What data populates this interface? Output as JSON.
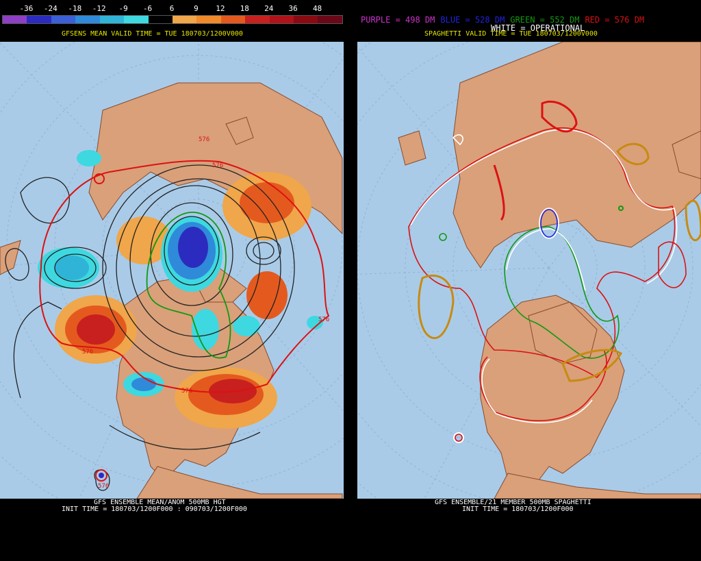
{
  "left": {
    "colorbar_labels": [
      "-36",
      "-24",
      "-18",
      "-12",
      "-9",
      "-6",
      "6",
      "9",
      "12",
      "18",
      "24",
      "36",
      "48"
    ],
    "colorbar_colors": [
      "#8e3fc4",
      "#2c2bbf",
      "#3a5fd6",
      "#2f8ad9",
      "#2fb4d8",
      "#3ed8e0",
      "#000000",
      "#f0a64a",
      "#f08a2a",
      "#e45a1e",
      "#c8201e",
      "#b0121a",
      "#8a0a12",
      "#6a0818"
    ],
    "valid_time": "GFSENS MEAN VALID TIME = TUE 180703/1200V000",
    "title_line1": "GFS ENSEMBLE MEAN/ANOM 500MB HGT",
    "title_line2": "INIT TIME = 180703/1200F000 : 090703/1200F000",
    "contour_labels": [
      "576",
      "576",
      "576",
      "576",
      "576",
      "576"
    ]
  },
  "right": {
    "legend": {
      "purple": "PURPLE = 498 DM",
      "blue": "BLUE = 528 DM",
      "green": "GREEN = 552 DM",
      "red": "RED = 576 DM",
      "white": "WHITE = OPERATIONAL"
    },
    "valid_time": "SPAGHETTI VALID TIME = TUE 180703/1200V000",
    "title_line1": "GFS ENSEMBLE/21 MEMBER 500MB SPAGHETTI",
    "title_line2": "INIT TIME = 180703/1200F000"
  },
  "colors": {
    "ocean": "#a9cbe8",
    "land": "#d9a07a",
    "border": "#8a4a2a",
    "purple": "#cc33cc",
    "blue": "#2222dd",
    "green": "#119911",
    "red": "#dd1111",
    "white": "#ffffff",
    "gold": "#c88a10"
  }
}
